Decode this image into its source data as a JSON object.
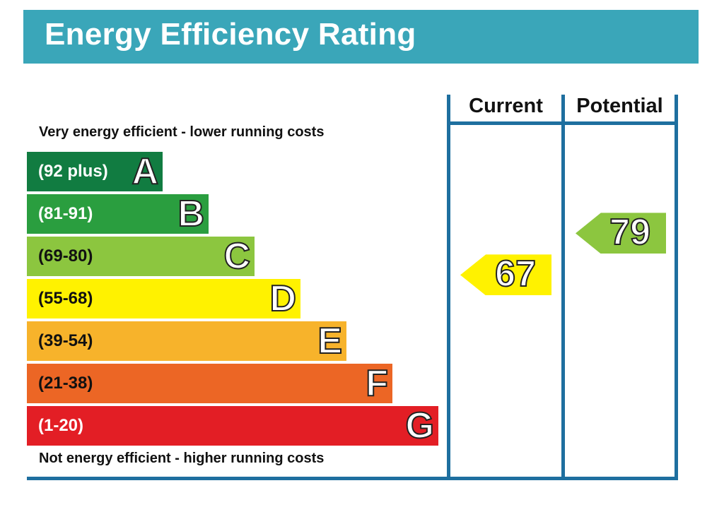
{
  "title": "Energy Efficiency Rating",
  "top_note": "Very energy efficient - lower running costs",
  "bottom_note": "Not energy efficient - higher running costs",
  "columns": {
    "current": "Current",
    "potential": "Potential"
  },
  "chart_data": {
    "type": "bar",
    "categories": [
      "A",
      "B",
      "C",
      "D",
      "E",
      "F",
      "G"
    ],
    "ranges": [
      "(92 plus)",
      "(81-91)",
      "(69-80)",
      "(55-68)",
      "(39-54)",
      "(21-38)",
      "(1-20)"
    ],
    "range_min": [
      92,
      81,
      69,
      55,
      39,
      21,
      1
    ],
    "colors": [
      "#117c41",
      "#2a9e3f",
      "#8cc63f",
      "#fff200",
      "#f7b32b",
      "#ec6625",
      "#e31e25"
    ],
    "range_text_colors": [
      "#ffffff",
      "#ffffff",
      "#111111",
      "#111111",
      "#111111",
      "#111111",
      "#ffffff"
    ],
    "current": {
      "value": 67,
      "band": "D",
      "color": "#fff200"
    },
    "potential": {
      "value": 79,
      "band": "C",
      "color": "#8cc63f"
    }
  }
}
